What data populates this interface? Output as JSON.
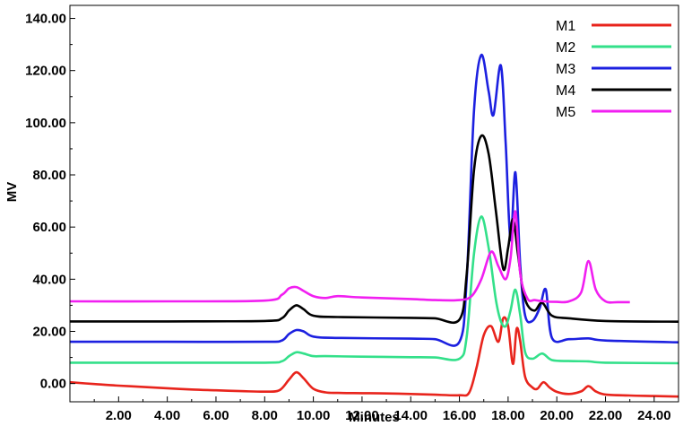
{
  "chart_data": {
    "type": "line",
    "title": "",
    "xlabel": "Minutes",
    "ylabel": "MV",
    "xlim": [
      0,
      25
    ],
    "ylim": [
      -7,
      145
    ],
    "x_ticks": [
      2,
      4,
      6,
      8,
      10,
      12,
      14,
      16,
      18,
      20,
      22,
      24
    ],
    "x_tick_labels": [
      "2.00",
      "4.00",
      "6.00",
      "8.00",
      "10.00",
      "12.00",
      "14.00",
      "16.00",
      "18.00",
      "20.00",
      "22.00",
      "24.00"
    ],
    "y_ticks": [
      0,
      20,
      40,
      60,
      80,
      100,
      120,
      140
    ],
    "y_tick_labels": [
      "0.00",
      "20.00",
      "40.00",
      "60.00",
      "80.00",
      "100.00",
      "120.00",
      "140.00"
    ],
    "grid": false,
    "legend_position": "top-right",
    "series": [
      {
        "name": "M1",
        "color": "#e8241c",
        "x": [
          0,
          1,
          2,
          3,
          4,
          5,
          6,
          7,
          8,
          8.6,
          9.0,
          9.3,
          9.6,
          10.0,
          10.5,
          11,
          12,
          13,
          14,
          15,
          16,
          16.4,
          16.7,
          17.0,
          17.3,
          17.6,
          17.8,
          18.0,
          18.2,
          18.35,
          18.5,
          18.7,
          19.0,
          19.2,
          19.45,
          19.7,
          20.0,
          20.5,
          21.0,
          21.3,
          21.6,
          22.0,
          23,
          24,
          25
        ],
        "y": [
          0.5,
          -0.2,
          -0.8,
          -1.3,
          -1.8,
          -2.3,
          -2.6,
          -2.9,
          -3.1,
          -2.6,
          1.5,
          4.3,
          2.0,
          -2.0,
          -3.4,
          -3.6,
          -3.7,
          -3.8,
          -4.0,
          -4.3,
          -4.5,
          -3.5,
          6.0,
          18.5,
          22.0,
          16.0,
          25.0,
          22.0,
          7.5,
          21.0,
          16.0,
          2.5,
          -1.5,
          -2.0,
          0.5,
          -1.5,
          -3.2,
          -4.0,
          -3.0,
          -1.0,
          -3.0,
          -4.2,
          -4.6,
          -4.8,
          -5.0
        ]
      },
      {
        "name": "M2",
        "color": "#33e08a",
        "x": [
          0,
          4,
          8,
          8.7,
          9.0,
          9.3,
          9.6,
          10.0,
          10.5,
          12,
          14,
          15,
          16,
          16.3,
          16.6,
          16.9,
          17.2,
          17.5,
          17.7,
          17.9,
          18.1,
          18.3,
          18.5,
          18.7,
          19.0,
          19.4,
          19.8,
          20.5,
          21.3,
          22,
          25
        ],
        "y": [
          8.0,
          8.0,
          8.0,
          8.5,
          10.5,
          12.0,
          11.5,
          10.5,
          10.5,
          10.3,
          10.1,
          10.0,
          9.5,
          18.0,
          50.0,
          64.0,
          52.0,
          32.0,
          24.0,
          22.0,
          28.0,
          36.0,
          26.0,
          12.0,
          9.5,
          11.5,
          9.0,
          8.6,
          8.5,
          8.0,
          7.8
        ]
      },
      {
        "name": "M3",
        "color": "#1c20e0",
        "x": [
          0,
          4,
          8,
          8.7,
          9.0,
          9.3,
          9.6,
          10.0,
          11,
          14,
          15,
          16,
          16.3,
          16.6,
          16.9,
          17.2,
          17.4,
          17.7,
          17.9,
          18.1,
          18.3,
          18.5,
          18.7,
          19.0,
          19.3,
          19.55,
          19.8,
          20.5,
          21.3,
          22,
          25
        ],
        "y": [
          16.0,
          16.0,
          16.0,
          16.5,
          19.0,
          20.5,
          20.0,
          18.0,
          17.5,
          17.2,
          17.0,
          16.0,
          40.0,
          105.0,
          126.0,
          112.0,
          103.0,
          122.0,
          92.0,
          55.0,
          81.0,
          45.0,
          26.0,
          24.0,
          29.0,
          36.0,
          17.5,
          17.0,
          17.3,
          16.5,
          15.8
        ]
      },
      {
        "name": "M4",
        "color": "#000000",
        "x": [
          0,
          4,
          8,
          8.7,
          9.0,
          9.3,
          9.6,
          10.0,
          11,
          14,
          15,
          16,
          16.3,
          16.6,
          16.9,
          17.2,
          17.5,
          17.8,
          18.0,
          18.2,
          18.4,
          18.6,
          18.8,
          19.1,
          19.4,
          19.8,
          20.5,
          22,
          25
        ],
        "y": [
          23.8,
          23.8,
          24.0,
          25.0,
          28.0,
          30.0,
          28.5,
          26.0,
          25.5,
          25.2,
          25.0,
          24.5,
          42.0,
          82.0,
          95.0,
          88.0,
          66.0,
          44.0,
          52.0,
          63.0,
          50.0,
          36.0,
          30.0,
          28.0,
          31.0,
          26.0,
          25.0,
          24.0,
          23.7
        ]
      },
      {
        "name": "M5",
        "color": "#f11ff1",
        "x": [
          0,
          4,
          8,
          8.7,
          9.0,
          9.3,
          9.6,
          10.0,
          10.5,
          11,
          12,
          14,
          15,
          16,
          16.5,
          16.9,
          17.3,
          17.6,
          17.9,
          18.1,
          18.3,
          18.5,
          18.8,
          19.1,
          19.5,
          20.0,
          20.5,
          21.0,
          21.3,
          21.6,
          22.0,
          22.5,
          23.0
        ],
        "y": [
          31.5,
          31.5,
          31.8,
          34.0,
          36.5,
          37.0,
          35.5,
          33.5,
          32.8,
          33.5,
          33.0,
          32.4,
          32.0,
          32.0,
          33.5,
          40.0,
          50.5,
          45.0,
          40.0,
          48.0,
          66.0,
          42.0,
          32.5,
          32.0,
          31.5,
          31.3,
          31.5,
          35.0,
          47.0,
          36.0,
          31.5,
          31.2,
          31.2
        ]
      }
    ]
  }
}
